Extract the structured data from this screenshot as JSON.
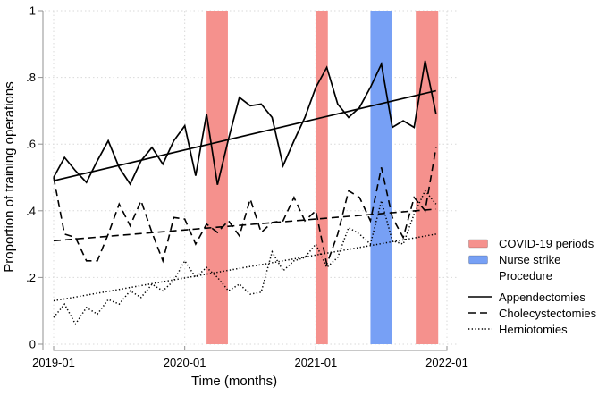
{
  "figure": {
    "background": "#ffffff"
  },
  "chart_data": {
    "type": "line",
    "title": "",
    "xlabel": "Time (months)",
    "ylabel": "Proportion of training operations",
    "x_unit": "month",
    "x_start": "2019-01",
    "x_end": "2021-12",
    "x_tick_labels": [
      "2019-01",
      "2020-01",
      "2021-01",
      "2022-01"
    ],
    "x_tick_months": [
      0,
      12,
      24,
      36
    ],
    "y_ticks": [
      0,
      0.2,
      0.4,
      0.6,
      0.8,
      1
    ],
    "y_tick_labels": [
      "0",
      ".2",
      ".4",
      ".6",
      ".8",
      "1"
    ],
    "ylim": [
      0,
      1
    ],
    "grid": true,
    "line_color": "#000000",
    "series": [
      {
        "name": "Appendectomies",
        "style": "solid",
        "values": [
          0.5,
          0.56,
          0.52,
          0.485,
          0.55,
          0.61,
          0.53,
          0.48,
          0.55,
          0.59,
          0.54,
          0.61,
          0.655,
          0.505,
          0.69,
          0.478,
          0.615,
          0.74,
          0.715,
          0.72,
          0.68,
          0.535,
          0.61,
          0.68,
          0.77,
          0.83,
          0.72,
          0.68,
          0.71,
          0.77,
          0.84,
          0.65,
          0.67,
          0.65,
          0.85,
          0.69
        ],
        "trend": {
          "start": 0.49,
          "end": 0.76
        }
      },
      {
        "name": "Cholecystectomies",
        "style": "dashed",
        "values": [
          0.5,
          0.33,
          0.32,
          0.25,
          0.25,
          0.33,
          0.42,
          0.355,
          0.43,
          0.335,
          0.25,
          0.38,
          0.375,
          0.3,
          0.36,
          0.335,
          0.37,
          0.325,
          0.435,
          0.335,
          0.365,
          0.37,
          0.44,
          0.37,
          0.4,
          0.24,
          0.33,
          0.46,
          0.44,
          0.37,
          0.53,
          0.38,
          0.32,
          0.44,
          0.4,
          0.59
        ],
        "trend": {
          "start": 0.31,
          "end": 0.405
        }
      },
      {
        "name": "Herniotomies",
        "style": "dotted",
        "values": [
          0.08,
          0.12,
          0.06,
          0.11,
          0.09,
          0.134,
          0.12,
          0.16,
          0.14,
          0.18,
          0.16,
          0.19,
          0.25,
          0.2,
          0.23,
          0.2,
          0.16,
          0.18,
          0.15,
          0.156,
          0.277,
          0.22,
          0.25,
          0.26,
          0.3,
          0.23,
          0.26,
          0.35,
          0.33,
          0.3,
          0.43,
          0.31,
          0.3,
          0.39,
          0.46,
          0.42
        ],
        "trend": {
          "start": 0.13,
          "end": 0.33
        }
      }
    ],
    "bands": [
      {
        "label": "COVID-19 periods",
        "color": "#f5918d",
        "from_month": 14,
        "to_month": 15.95,
        "period": "2020-03 to 2020-05"
      },
      {
        "label": "COVID-19 periods",
        "color": "#f5918d",
        "from_month": 24,
        "to_month": 25.1,
        "period": "2021-01 to 2021-02"
      },
      {
        "label": "Nurse strike",
        "color": "#77a0f5",
        "from_month": 29,
        "to_month": 31,
        "period": "2021-06 to 2021-08"
      },
      {
        "label": "COVID-19 periods",
        "color": "#f5918d",
        "from_month": 33.15,
        "to_month": 35.2,
        "period": "2021-10 to 2021-12"
      }
    ],
    "legend": {
      "position": "right-bottom",
      "items": [
        {
          "label": "COVID-19 periods",
          "swatch": "rect",
          "color": "#f5918d"
        },
        {
          "label": "Nurse strike",
          "swatch": "rect",
          "color": "#77a0f5"
        },
        {
          "label": "Procedure",
          "swatch": "none",
          "header": true
        },
        {
          "label": "Appendectomies",
          "swatch": "line",
          "style": "solid",
          "gap_before": true
        },
        {
          "label": "Cholecystectomies",
          "swatch": "line",
          "style": "dashed"
        },
        {
          "label": "Herniotomies",
          "swatch": "line",
          "style": "dotted"
        }
      ]
    }
  }
}
